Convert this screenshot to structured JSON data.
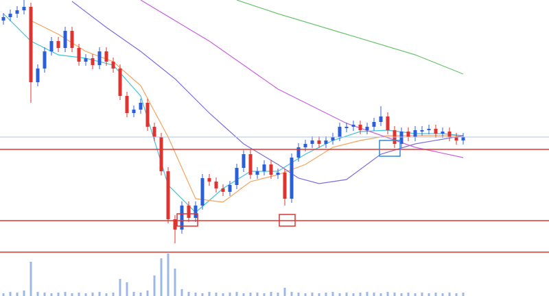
{
  "chart_data": {
    "type": "candlestick",
    "ylim": [
      0,
      432
    ],
    "up_color": "#2b5fd9",
    "down_color": "#e0322e",
    "open": [
      402,
      407,
      412,
      417,
      422,
      312,
      332,
      357,
      372,
      362,
      387,
      362,
      342,
      347,
      337,
      357,
      342,
      332,
      292,
      267,
      272,
      282,
      247,
      232,
      182,
      112,
      97,
      132,
      114,
      132,
      172,
      167,
      157,
      152,
      162,
      187,
      207,
      177,
      182,
      192,
      177,
      180,
      142,
      202,
      217,
      222,
      227,
      222,
      227,
      232,
      245,
      247,
      250,
      242,
      247,
      254,
      262,
      242,
      222,
      240,
      232,
      240,
      242,
      244,
      237,
      240,
      232,
      227
    ],
    "high": [
      413,
      418,
      423,
      432,
      428,
      338,
      363,
      378,
      378,
      393,
      393,
      368,
      353,
      353,
      363,
      363,
      348,
      338,
      298,
      278,
      288,
      288,
      253,
      238,
      188,
      118,
      138,
      138,
      138,
      178,
      178,
      173,
      163,
      168,
      193,
      213,
      213,
      188,
      198,
      198,
      186,
      186,
      208,
      223,
      228,
      233,
      233,
      233,
      238,
      253,
      253,
      256,
      256,
      253,
      260,
      277,
      268,
      248,
      246,
      246,
      248,
      248,
      250,
      250,
      246,
      246,
      238,
      238
    ],
    "low": [
      396,
      401,
      406,
      411,
      282,
      306,
      326,
      351,
      356,
      356,
      356,
      336,
      336,
      331,
      331,
      336,
      326,
      286,
      261,
      261,
      266,
      241,
      226,
      176,
      106,
      77,
      91,
      108,
      108,
      126,
      161,
      151,
      146,
      146,
      156,
      181,
      171,
      171,
      176,
      171,
      171,
      132,
      136,
      196,
      211,
      216,
      216,
      216,
      221,
      226,
      239,
      241,
      236,
      236,
      241,
      248,
      236,
      216,
      216,
      226,
      226,
      234,
      236,
      231,
      231,
      226,
      221,
      221
    ],
    "close": [
      407,
      412,
      417,
      422,
      312,
      332,
      357,
      372,
      362,
      387,
      362,
      342,
      347,
      337,
      357,
      342,
      332,
      292,
      267,
      272,
      282,
      247,
      232,
      182,
      112,
      97,
      132,
      114,
      132,
      172,
      167,
      157,
      152,
      162,
      187,
      207,
      177,
      182,
      192,
      177,
      180,
      142,
      202,
      217,
      222,
      227,
      222,
      227,
      232,
      247,
      247,
      250,
      242,
      247,
      254,
      262,
      242,
      222,
      240,
      232,
      242,
      242,
      244,
      237,
      240,
      232,
      227,
      232
    ],
    "volume": [
      4,
      6,
      5,
      8,
      50,
      6,
      5,
      4,
      5,
      6,
      4,
      5,
      4,
      5,
      6,
      4,
      5,
      25,
      20,
      6,
      5,
      8,
      30,
      55,
      62,
      40,
      10,
      6,
      5,
      4,
      6,
      5,
      4,
      5,
      6,
      4,
      5,
      5,
      4,
      6,
      5,
      12,
      6,
      5,
      4,
      5,
      4,
      5,
      6,
      4,
      5,
      4,
      5,
      6,
      5,
      4,
      6,
      5,
      4,
      5,
      4,
      5,
      4,
      5,
      4,
      5,
      4,
      5
    ],
    "volume_color": "#9db8e8",
    "series": [
      {
        "color": "#3ec3dc",
        "x": [
          0,
          4,
          8,
          12,
          16,
          20,
          24,
          28,
          32,
          36,
          40,
          44,
          48,
          52,
          56,
          60,
          64,
          67
        ],
        "values": [
          412,
          372,
          352,
          347,
          337,
          292,
          162,
          122,
          157,
          182,
          182,
          207,
          227,
          240,
          242,
          237,
          237,
          234
        ]
      },
      {
        "color": "#f5a25a",
        "x": [
          4,
          8,
          12,
          16,
          20,
          24,
          28,
          32,
          36,
          40,
          44,
          48,
          52,
          56,
          60,
          64,
          67
        ],
        "values": [
          402,
          382,
          357,
          342,
          307,
          232,
          142,
          137,
          167,
          177,
          192,
          217,
          227,
          234,
          234,
          234,
          234
        ]
      },
      {
        "color": "#7b6be0",
        "x": [
          10,
          15,
          20,
          25,
          30,
          35,
          40,
          43,
          46,
          50,
          55,
          60,
          67
        ],
        "values": [
          430,
          392,
          357,
          317,
          267,
          222,
          192,
          172,
          164,
          170,
          207,
          222,
          234
        ]
      },
      {
        "color": "#c85fe0",
        "x": [
          20,
          30,
          40,
          50,
          60,
          67
        ],
        "values": [
          432,
          372,
          302,
          252,
          217,
          202
        ]
      },
      {
        "color": "#6cc46c",
        "x": [
          34,
          40,
          50,
          60,
          67
        ],
        "values": [
          432,
          412,
          382,
          352,
          324
        ]
      }
    ],
    "levels": [
      214,
      110,
      64
    ],
    "level_color": "#e0322e",
    "price_line": 232,
    "price_line_color": "#a9c4ea"
  }
}
